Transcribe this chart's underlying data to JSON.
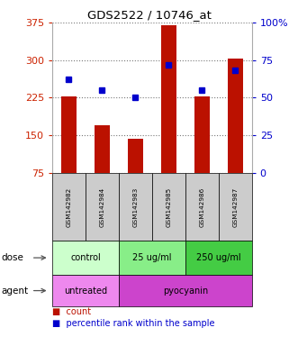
{
  "title": "GDS2522 / 10746_at",
  "samples": [
    "GSM142982",
    "GSM142984",
    "GSM142983",
    "GSM142985",
    "GSM142986",
    "GSM142987"
  ],
  "counts": [
    228,
    170,
    143,
    370,
    228,
    303
  ],
  "percentile_ranks": [
    62,
    55,
    50,
    72,
    55,
    68
  ],
  "ylim_left": [
    75,
    375
  ],
  "ylim_right": [
    0,
    100
  ],
  "yticks_left": [
    75,
    150,
    225,
    300,
    375
  ],
  "yticks_right": [
    0,
    25,
    50,
    75,
    100
  ],
  "bar_color": "#bb1100",
  "dot_color": "#0000cc",
  "dose_groups": [
    {
      "label": "control",
      "span": [
        0,
        2
      ],
      "color": "#ccffcc"
    },
    {
      "label": "25 ug/ml",
      "span": [
        2,
        4
      ],
      "color": "#88ee88"
    },
    {
      "label": "250 ug/ml",
      "span": [
        4,
        6
      ],
      "color": "#44cc44"
    }
  ],
  "agent_groups": [
    {
      "label": "untreated",
      "span": [
        0,
        2
      ],
      "color": "#ee88ee"
    },
    {
      "label": "pyocyanin",
      "span": [
        2,
        6
      ],
      "color": "#cc44cc"
    }
  ],
  "sample_bg_color": "#cccccc",
  "dose_label": "dose",
  "agent_label": "agent",
  "left_ytick_color": "#cc2200",
  "right_ytick_color": "#0000cc",
  "grid_linestyle": "dotted",
  "grid_color": "#777777",
  "count_legend": "count",
  "percentile_legend": "percentile rank within the sample",
  "bar_width": 0.45
}
